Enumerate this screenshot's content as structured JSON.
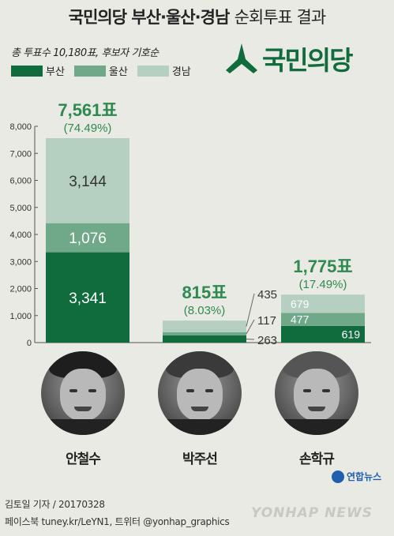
{
  "title": {
    "bold": "국민의당 부산·울산·경남",
    "light": "순회투표 결과"
  },
  "subtitle": "총 투표수 10,180표, 후보자 기호순",
  "party_logo_text": "국민의당",
  "legend": [
    {
      "label": "부산",
      "color": "#106b3d"
    },
    {
      "label": "울산",
      "color": "#6fa98a"
    },
    {
      "label": "경남",
      "color": "#b5cfc0"
    }
  ],
  "colors": {
    "total_label": "#2f8a50",
    "axis": "#555555"
  },
  "chart_data": {
    "type": "bar",
    "stacked": true,
    "categories": [
      "안철수",
      "박주선",
      "손학규"
    ],
    "series": [
      {
        "name": "부산",
        "values": [
          3341,
          263,
          619
        ]
      },
      {
        "name": "울산",
        "values": [
          1076,
          117,
          477
        ]
      },
      {
        "name": "경남",
        "values": [
          3144,
          435,
          679
        ]
      }
    ],
    "totals": [
      "7,561표",
      "815표",
      "1,775표"
    ],
    "shares": [
      "(74.49%)",
      "(8.03%)",
      "(17.49%)"
    ],
    "segment_labels": [
      [
        "3,341",
        "1,076",
        "3,144"
      ],
      [
        "263",
        "117",
        "435"
      ],
      [
        "619",
        "477",
        "679"
      ]
    ],
    "yticks": [
      "0",
      "1,000",
      "2,000",
      "3,000",
      "4,000",
      "5,000",
      "6,000",
      "7,000",
      "8,000"
    ],
    "ylim": [
      0,
      8000
    ],
    "grid": false
  },
  "candidates": [
    {
      "name": "안철수",
      "photo": "candidate-photo"
    },
    {
      "name": "박주선",
      "photo": "candidate-photo"
    },
    {
      "name": "손학규",
      "photo": "candidate-photo"
    }
  ],
  "credit_line1": "김토일 기자 / 20170328",
  "credit_line2": "페이스북 tuney.kr/LeYN1, 트위터 @yonhap_graphics",
  "yonhap_logo": "연합뉴스",
  "watermark": "YONHAP NEWS"
}
